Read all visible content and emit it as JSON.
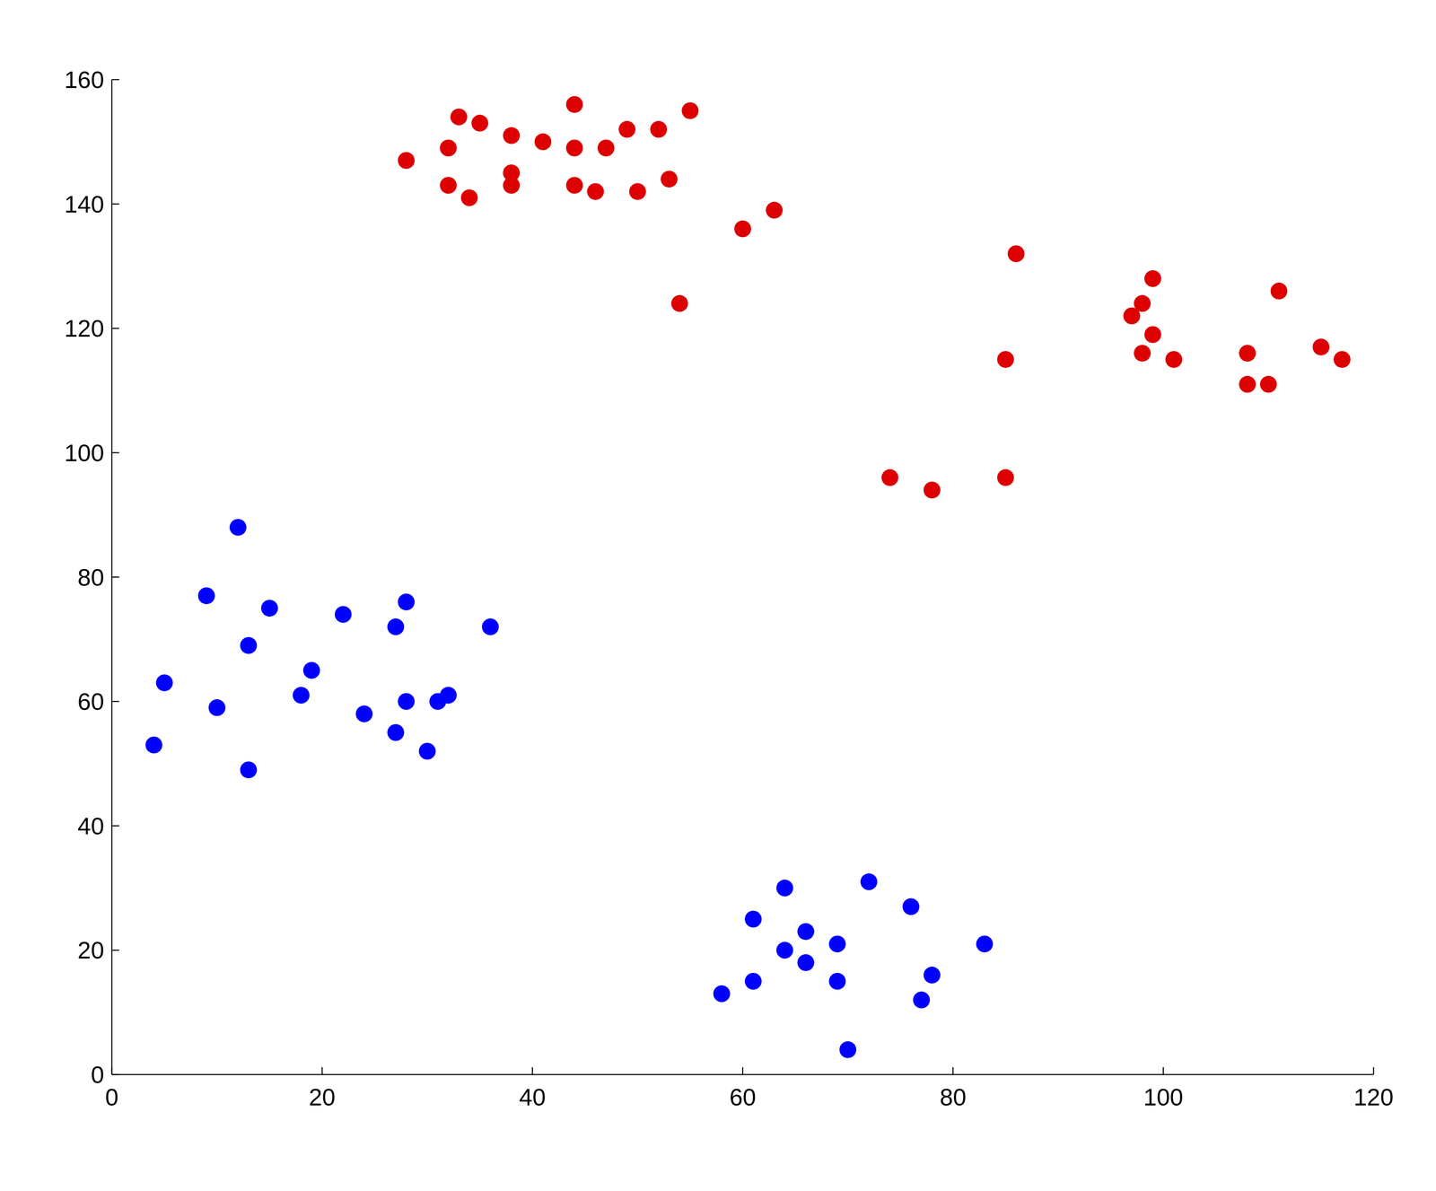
{
  "chart_data": {
    "type": "scatter",
    "xlim": [
      0,
      120
    ],
    "xticks": [
      0,
      20,
      40,
      60,
      80,
      100,
      120
    ],
    "ylim": [
      0,
      160
    ],
    "yticks": [
      0,
      20,
      40,
      60,
      80,
      100,
      120,
      140,
      160
    ],
    "grid": false,
    "marker": "circle",
    "series": [
      {
        "color": "#dd0000",
        "x": [
          28,
          32,
          32,
          33,
          34,
          35,
          38,
          38,
          38,
          41,
          44,
          44,
          44,
          46,
          47,
          49,
          50,
          52,
          53,
          55,
          54,
          60,
          63,
          86,
          85,
          97,
          98,
          99,
          99,
          98,
          101,
          108,
          108,
          110,
          111,
          115,
          117,
          74,
          78,
          85
        ],
        "values": [
          147,
          149,
          143,
          154,
          141,
          153,
          151,
          145,
          143,
          150,
          156,
          149,
          143,
          142,
          149,
          152,
          142,
          152,
          144,
          155,
          124,
          136,
          139,
          132,
          115,
          122,
          124,
          128,
          119,
          116,
          115,
          116,
          111,
          111,
          126,
          117,
          115,
          96,
          94,
          96
        ]
      },
      {
        "color": "#0000ff",
        "x": [
          12,
          9,
          15,
          22,
          28,
          27,
          36,
          13,
          5,
          19,
          18,
          10,
          24,
          28,
          31,
          32,
          27,
          4,
          30,
          13,
          72,
          64,
          76,
          61,
          66,
          64,
          69,
          66,
          83,
          78,
          61,
          69,
          58,
          77,
          70
        ],
        "values": [
          88,
          77,
          75,
          74,
          76,
          72,
          72,
          69,
          63,
          65,
          61,
          59,
          58,
          60,
          60,
          61,
          55,
          53,
          52,
          49,
          31,
          30,
          27,
          25,
          23,
          20,
          21,
          18,
          21,
          16,
          15,
          15,
          13,
          12,
          4
        ]
      }
    ]
  }
}
